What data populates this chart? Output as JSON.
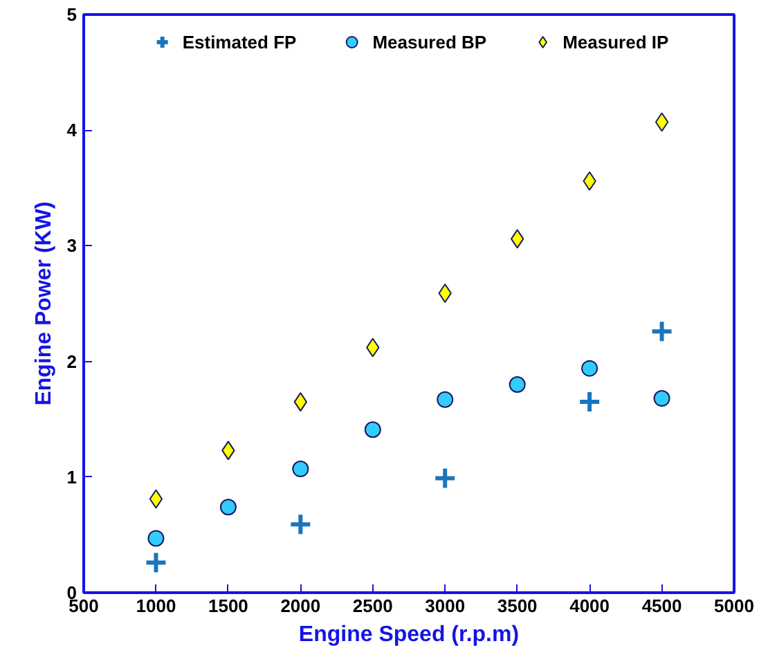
{
  "chart_data": {
    "type": "scatter",
    "xlabel": "Engine Speed (r.p.m)",
    "ylabel": "Engine Power (KW)",
    "xlim": [
      500,
      5000
    ],
    "xticks": [
      500,
      1000,
      1500,
      2000,
      2500,
      3000,
      3500,
      4000,
      4500,
      5000
    ],
    "ylim": [
      0,
      5
    ],
    "yticks": [
      0,
      1,
      2,
      3,
      4,
      5
    ],
    "grid": false,
    "legend": "top",
    "series": [
      {
        "name": "Estimated FP",
        "color": "#1a75bc",
        "marker": "cross",
        "x": [
          1000,
          2000,
          3000,
          4000,
          4500
        ],
        "values": [
          0.26,
          0.59,
          0.99,
          1.65,
          2.26
        ]
      },
      {
        "name": "Measured BP",
        "color": "#33ccff",
        "marker": "circle",
        "x": [
          1000,
          1500,
          2000,
          2500,
          3000,
          3500,
          4000,
          4500
        ],
        "values": [
          0.47,
          0.74,
          1.07,
          1.41,
          1.67,
          1.8,
          1.94,
          1.68
        ]
      },
      {
        "name": "Measured IP",
        "color": "#ffff00",
        "marker": "diamond",
        "x": [
          1000,
          1500,
          2000,
          2500,
          3000,
          3500,
          4000,
          4500
        ],
        "values": [
          0.81,
          1.23,
          1.65,
          2.12,
          2.59,
          3.06,
          3.56,
          4.07
        ]
      }
    ]
  }
}
